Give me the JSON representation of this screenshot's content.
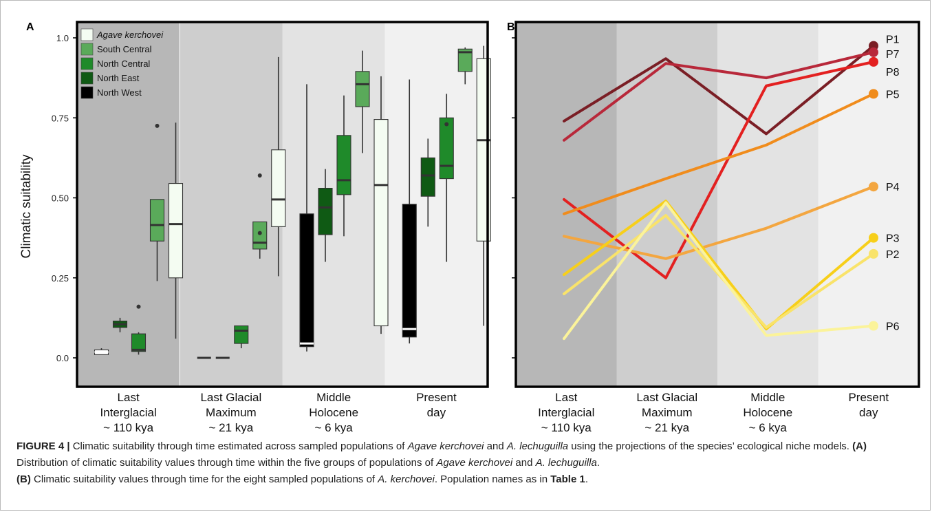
{
  "chart_data": [
    {
      "panel": "A",
      "type": "boxplot",
      "ylabel": "Climatic suitability",
      "ylim": [
        0,
        1.05
      ],
      "yticks": [
        "0.0",
        "0.25",
        "0.50",
        "0.75",
        "1.0"
      ],
      "yticks_values": [
        0,
        0.25,
        0.5,
        0.75,
        1.0
      ],
      "periods": [
        {
          "lines": [
            "Last",
            "Interglacial",
            "~ 110 kya"
          ]
        },
        {
          "lines": [
            "Last Glacial",
            "Maximum",
            "~ 21 kya"
          ]
        },
        {
          "lines": [
            "Middle",
            "Holocene",
            "~ 6 kya"
          ]
        },
        {
          "lines": [
            "Present",
            "day"
          ]
        }
      ],
      "legend": [
        {
          "name": "Agave kerchovei",
          "italic": true,
          "color": "#f4fcf2"
        },
        {
          "name": "South Central",
          "color": "#5aaa5a"
        },
        {
          "name": "North Central",
          "color": "#1f8a2a"
        },
        {
          "name": "North East",
          "color": "#0f5a14"
        },
        {
          "name": "North West",
          "color": "#000000"
        }
      ],
      "boxes": [
        {
          "period": 0,
          "group": "North West",
          "min": 0.01,
          "q1": 0.01,
          "median": 0.018,
          "q3": 0.025,
          "max": 0.03,
          "outliers": [],
          "median_color": "#ffffff",
          "color": "#ffffff",
          "pos": 0
        },
        {
          "period": 0,
          "group": "North East",
          "min": 0.08,
          "q1": 0.095,
          "median": 0.105,
          "q3": 0.115,
          "max": 0.125,
          "outliers": [],
          "color": "#0f5a14",
          "pos": 1
        },
        {
          "period": 0,
          "group": "North Central",
          "min": 0.01,
          "q1": 0.02,
          "median": 0.025,
          "q3": 0.075,
          "max": 0.08,
          "outliers": [
            0.16
          ],
          "color": "#1f8a2a",
          "pos": 2
        },
        {
          "period": 0,
          "group": "South Central",
          "min": 0.24,
          "q1": 0.365,
          "median": 0.415,
          "q3": 0.495,
          "max": 0.495,
          "outliers": [
            0.725
          ],
          "color": "#5aaa5a",
          "pos": 3
        },
        {
          "period": 0,
          "group": "Agave kerchovei",
          "min": 0.06,
          "q1": 0.25,
          "median": 0.418,
          "q3": 0.545,
          "max": 0.735,
          "outliers": [],
          "color": "#f4fcf2",
          "pos": 4
        },
        {
          "period": 1,
          "group": "North West",
          "min": 0.0,
          "q1": 0.0,
          "median": 0.0,
          "q3": 0.0,
          "max": 0.0,
          "outliers": [],
          "color": "#333333",
          "pos": 0,
          "flat": true
        },
        {
          "period": 1,
          "group": "North East",
          "min": 0.0,
          "q1": 0.0,
          "median": 0.0,
          "q3": 0.0,
          "max": 0.0,
          "outliers": [],
          "color": "#333333",
          "pos": 1,
          "flat": true
        },
        {
          "period": 1,
          "group": "North Central",
          "min": 0.03,
          "q1": 0.045,
          "median": 0.085,
          "q3": 0.1,
          "max": 0.1,
          "outliers": [],
          "color": "#1f8a2a",
          "pos": 2
        },
        {
          "period": 1,
          "group": "South Central",
          "min": 0.31,
          "q1": 0.34,
          "median": 0.36,
          "q3": 0.425,
          "max": 0.425,
          "outliers": [
            0.39,
            0.57
          ],
          "color": "#5aaa5a",
          "pos": 3
        },
        {
          "period": 1,
          "group": "Agave kerchovei",
          "min": 0.255,
          "q1": 0.41,
          "median": 0.495,
          "q3": 0.65,
          "max": 0.94,
          "outliers": [],
          "color": "#f4fcf2",
          "pos": 4
        },
        {
          "period": 2,
          "group": "North West",
          "min": 0.02,
          "q1": 0.035,
          "median": 0.045,
          "q3": 0.45,
          "max": 0.855,
          "outliers": [],
          "median_color": "#ffffff",
          "color": "#000000",
          "pos": 0
        },
        {
          "period": 2,
          "group": "North East",
          "min": 0.3,
          "q1": 0.385,
          "median": 0.47,
          "q3": 0.53,
          "max": 0.59,
          "outliers": [],
          "color": "#0f5a14",
          "pos": 1
        },
        {
          "period": 2,
          "group": "North Central",
          "min": 0.38,
          "q1": 0.51,
          "median": 0.555,
          "q3": 0.695,
          "max": 0.82,
          "outliers": [],
          "color": "#1f8a2a",
          "pos": 2
        },
        {
          "period": 2,
          "group": "South Central",
          "min": 0.64,
          "q1": 0.785,
          "median": 0.855,
          "q3": 0.895,
          "max": 0.96,
          "outliers": [],
          "color": "#5aaa5a",
          "pos": 3
        },
        {
          "period": 2,
          "group": "Agave kerchovei",
          "min": 0.075,
          "q1": 0.1,
          "median": 0.54,
          "q3": 0.745,
          "max": 0.88,
          "outliers": [],
          "color": "#f4fcf2",
          "pos": 4
        },
        {
          "period": 3,
          "group": "North West",
          "min": 0.045,
          "q1": 0.065,
          "median": 0.09,
          "q3": 0.48,
          "max": 0.87,
          "outliers": [],
          "median_color": "#ffffff",
          "color": "#000000",
          "pos": 0
        },
        {
          "period": 3,
          "group": "North East",
          "min": 0.41,
          "q1": 0.505,
          "median": 0.57,
          "q3": 0.625,
          "max": 0.685,
          "outliers": [],
          "color": "#0f5a14",
          "pos": 1
        },
        {
          "period": 3,
          "group": "North Central",
          "min": 0.3,
          "q1": 0.56,
          "median": 0.6,
          "q3": 0.75,
          "max": 0.825,
          "outliers": [
            0.73
          ],
          "color": "#1f8a2a",
          "pos": 2
        },
        {
          "period": 3,
          "group": "South Central",
          "min": 0.855,
          "q1": 0.895,
          "median": 0.955,
          "q3": 0.965,
          "max": 0.97,
          "outliers": [],
          "color": "#5aaa5a",
          "pos": 3
        },
        {
          "period": 3,
          "group": "Agave kerchovei",
          "min": 0.1,
          "q1": 0.365,
          "median": 0.68,
          "q3": 0.935,
          "max": 0.975,
          "outliers": [],
          "color": "#f4fcf2",
          "pos": 4
        }
      ]
    },
    {
      "panel": "B",
      "type": "line",
      "ylim": [
        0,
        1.05
      ],
      "periods": [
        {
          "lines": [
            "Last",
            "Interglacial",
            "~ 110 kya"
          ]
        },
        {
          "lines": [
            "Last Glacial",
            "Maximum",
            "~ 21 kya"
          ]
        },
        {
          "lines": [
            "Middle",
            "Holocene",
            "~ 6 kya"
          ]
        },
        {
          "lines": [
            "Present",
            "day"
          ]
        }
      ],
      "series": [
        {
          "name": "P1",
          "color": "#7a1e25",
          "values": [
            0.74,
            0.935,
            0.7,
            0.975
          ]
        },
        {
          "name": "P7",
          "color": "#b8283a",
          "values": [
            0.68,
            0.92,
            0.875,
            0.955
          ]
        },
        {
          "name": "P8",
          "color": "#e32020",
          "values": [
            0.495,
            0.25,
            0.85,
            0.925
          ]
        },
        {
          "name": "P5",
          "color": "#f08c1c",
          "values": [
            0.45,
            0.56,
            0.665,
            0.825
          ]
        },
        {
          "name": "P4",
          "color": "#f3a640",
          "values": [
            0.38,
            0.31,
            0.405,
            0.535
          ]
        },
        {
          "name": "P3",
          "color": "#f7cf1a",
          "values": [
            0.26,
            0.49,
            0.09,
            0.375
          ]
        },
        {
          "name": "P2",
          "color": "#f9e36a",
          "values": [
            0.2,
            0.445,
            0.095,
            0.325
          ]
        },
        {
          "name": "P6",
          "color": "#fbf39a",
          "values": [
            0.06,
            0.485,
            0.07,
            0.1
          ]
        }
      ]
    }
  ],
  "caption": {
    "label": "FIGURE 4 |",
    "s1": " Climatic suitability through time estimated across sampled populations of ",
    "i1": "Agave kerchovei",
    "s2": " and ",
    "i2": "A. lechuguilla",
    "s3": " using the projections of the species’ ecological niche models. ",
    "b1": "(A)",
    "s4": " Distribution of climatic suitability values through time within the five groups of populations of ",
    "i3": "Agave kerchovei",
    "s5": " and ",
    "i4": "A. lechuguilla",
    "s6": ".",
    "b2": "(B)",
    "s7": " Climatic suitability values through time for the eight sampled populations of ",
    "i5": "A. kerchovei",
    "s8": ". Population names as in ",
    "b3": "Table 1",
    "s9": "."
  },
  "panel_letters": {
    "a": "A",
    "b": "B"
  },
  "colors": {
    "bg1": "#b7b7b7",
    "bg2": "#cecece",
    "bg3": "#e3e3e3",
    "bg4": "#f1f1f1"
  }
}
